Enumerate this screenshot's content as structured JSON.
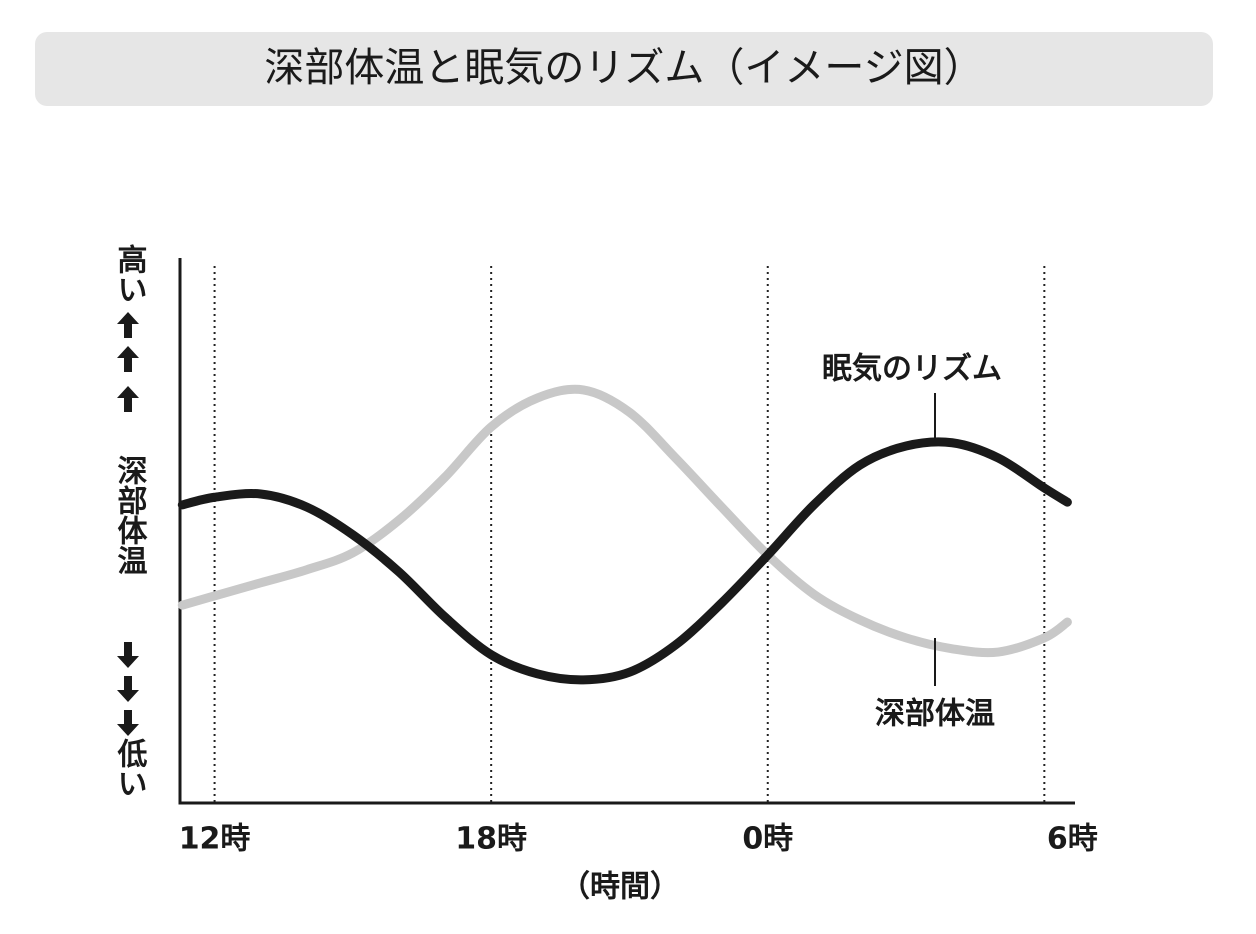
{
  "chart_data": {
    "type": "line",
    "title": "深部体温と眠気のリズム（イメージ図）",
    "x_label": "（時間）",
    "y_label": "深部体温",
    "y_high": "高い",
    "y_low": "低い",
    "x": [
      11.3,
      12,
      13,
      14,
      15,
      16,
      17,
      18,
      19,
      20,
      21,
      22,
      23,
      24,
      25,
      26,
      27,
      28,
      29,
      30,
      30.5
    ],
    "xlim": [
      11.25,
      30.6
    ],
    "xticks": [
      {
        "value": 12,
        "label": "12時"
      },
      {
        "value": 18,
        "label": "18時"
      },
      {
        "value": 24,
        "label": "0時"
      },
      {
        "value": 30,
        "label": "6時"
      }
    ],
    "ylim": [
      0,
      100
    ],
    "grid": true,
    "series": [
      {
        "name": "眠気のリズム",
        "color": "#1a1a1a",
        "values": [
          54.7,
          56.1,
          56.7,
          54.3,
          49.2,
          42.4,
          34.1,
          27.2,
          23.7,
          22.6,
          24.0,
          29.0,
          36.7,
          45.5,
          54.7,
          62.0,
          65.5,
          66.1,
          63.3,
          57.8,
          55.2
        ]
      },
      {
        "name": "深部体温",
        "color": "#c8c8c8",
        "values": [
          36.3,
          38.0,
          40.4,
          42.8,
          45.9,
          51.9,
          59.8,
          69.0,
          74.3,
          75.8,
          71.7,
          63.3,
          54.3,
          45.5,
          38.3,
          33.6,
          30.3,
          28.3,
          27.7,
          30.3,
          33.2
        ]
      }
    ]
  }
}
